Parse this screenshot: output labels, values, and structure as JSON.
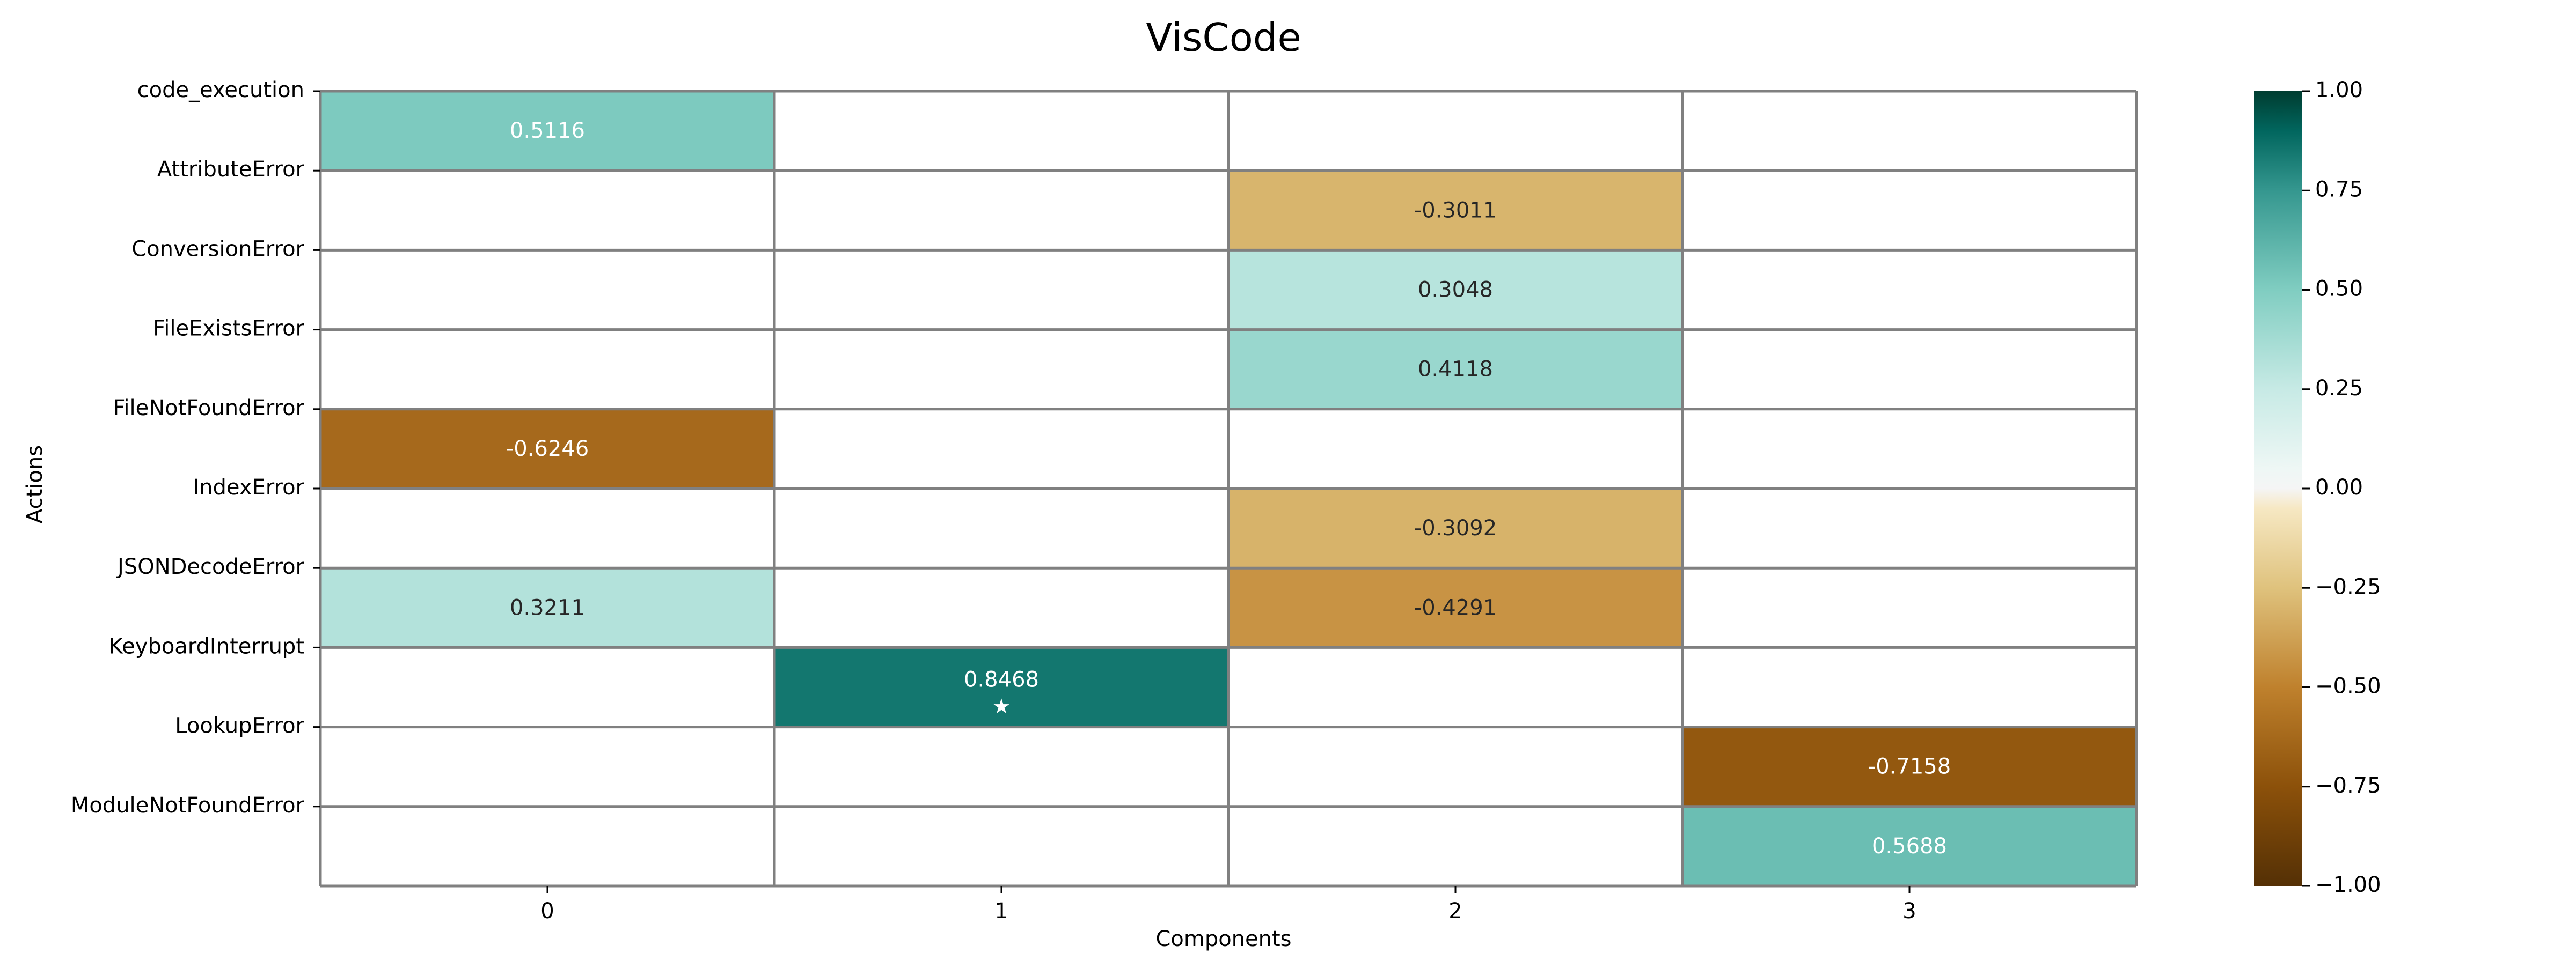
{
  "chart_data": {
    "type": "heatmap",
    "title": "VisCode",
    "xlabel": "Components",
    "ylabel": "Actions",
    "x_categories": [
      "0",
      "1",
      "2",
      "3"
    ],
    "y_categories": [
      "code_execution",
      "AttributeError",
      "ConversionError",
      "FileExistsError",
      "FileNotFoundError",
      "IndexError",
      "JSONDecodeError",
      "KeyboardInterrupt",
      "LookupError",
      "ModuleNotFoundError"
    ],
    "cells": [
      {
        "row": 0,
        "col": 0,
        "value": 0.5116,
        "label": "0.5116"
      },
      {
        "row": 1,
        "col": 2,
        "value": -0.3011,
        "label": "-0.3011"
      },
      {
        "row": 2,
        "col": 2,
        "value": 0.3048,
        "label": "0.3048"
      },
      {
        "row": 3,
        "col": 2,
        "value": 0.4118,
        "label": "0.4118"
      },
      {
        "row": 4,
        "col": 0,
        "value": -0.6246,
        "label": "-0.6246"
      },
      {
        "row": 5,
        "col": 2,
        "value": -0.3092,
        "label": "-0.3092"
      },
      {
        "row": 6,
        "col": 0,
        "value": 0.3211,
        "label": "0.3211"
      },
      {
        "row": 6,
        "col": 2,
        "value": -0.4291,
        "label": "-0.4291"
      },
      {
        "row": 7,
        "col": 1,
        "value": 0.8468,
        "label": "0.8468",
        "marker": "★"
      },
      {
        "row": 8,
        "col": 3,
        "value": -0.7158,
        "label": "-0.7158"
      },
      {
        "row": 9,
        "col": 3,
        "value": 0.5688,
        "label": "0.5688"
      }
    ],
    "empty_cells": "blank (white)",
    "colormap": "BrBG",
    "color_range": [
      -1.0,
      1.0
    ],
    "colorbar_ticks": [
      {
        "value": 1.0,
        "label": "1.00"
      },
      {
        "value": 0.75,
        "label": "0.75"
      },
      {
        "value": 0.5,
        "label": "0.50"
      },
      {
        "value": 0.25,
        "label": "0.25"
      },
      {
        "value": 0.0,
        "label": "0.00"
      },
      {
        "value": -0.25,
        "label": "−0.25"
      },
      {
        "value": -0.5,
        "label": "−0.50"
      },
      {
        "value": -0.75,
        "label": "−0.75"
      },
      {
        "value": -1.0,
        "label": "−1.00"
      }
    ],
    "colorbar_stops": [
      {
        "value": -1.0,
        "color": "#543005"
      },
      {
        "value": -0.75,
        "color": "#8c510a"
      },
      {
        "value": -0.5,
        "color": "#bf812d"
      },
      {
        "value": -0.25,
        "color": "#dfc27d"
      },
      {
        "value": -0.05,
        "color": "#f6e8c3"
      },
      {
        "value": 0.0,
        "color": "#f5f5f5"
      },
      {
        "value": 0.05,
        "color": "#eef7f5"
      },
      {
        "value": 0.25,
        "color": "#c7eae5"
      },
      {
        "value": 0.5,
        "color": "#80cdc1"
      },
      {
        "value": 0.75,
        "color": "#35978f"
      },
      {
        "value": 0.9,
        "color": "#01665e"
      },
      {
        "value": 1.0,
        "color": "#003c30"
      }
    ],
    "grid_color": "#808080",
    "grid": true
  }
}
